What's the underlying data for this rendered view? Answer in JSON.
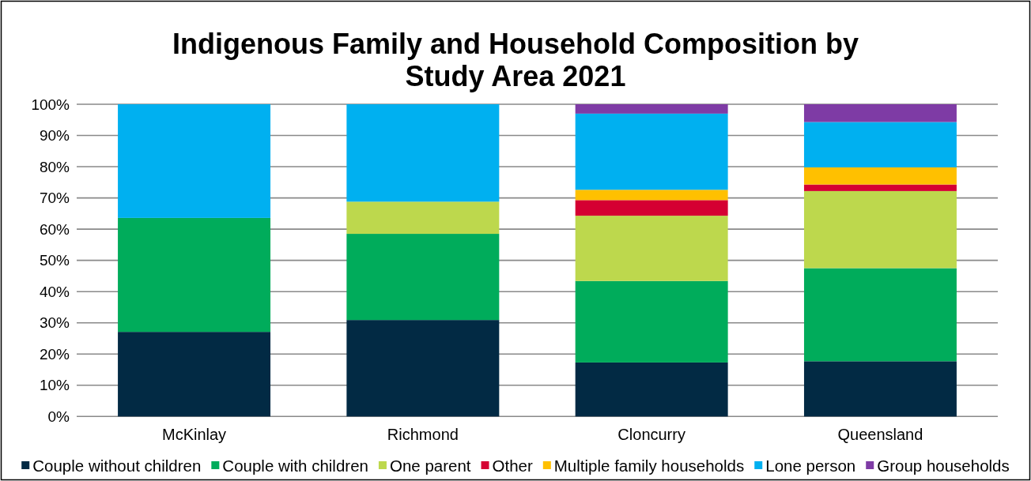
{
  "chart_data": {
    "type": "bar",
    "title": "Indigenous Family and Household Composition by Study Area 2021",
    "categories": [
      "McKinlay",
      "Richmond",
      "Cloncurry",
      "Queensland"
    ],
    "stacked": true,
    "series": [
      {
        "name": "Couple without children",
        "color": "#022a44",
        "values": [
          27.1,
          30.9,
          17.3,
          17.7
        ]
      },
      {
        "name": "Couple with children",
        "color": "#00ac5b",
        "values": [
          36.5,
          27.6,
          26.1,
          29.8
        ]
      },
      {
        "name": "One parent",
        "color": "#bdd84d",
        "values": [
          0,
          10.3,
          20.9,
          24.7
        ]
      },
      {
        "name": "Other",
        "color": "#d50032",
        "values": [
          0,
          0,
          5.0,
          2.1
        ]
      },
      {
        "name": "Multiple family households",
        "color": "#ffc000",
        "values": [
          0,
          0,
          3.3,
          5.5
        ]
      },
      {
        "name": "Lone person",
        "color": "#00b0f0",
        "values": [
          36.4,
          31.2,
          24.4,
          14.5
        ]
      },
      {
        "name": "Group households",
        "color": "#7e3ba5",
        "values": [
          0,
          0,
          3.0,
          5.7
        ]
      }
    ],
    "ylim": [
      0,
      100
    ],
    "yticks": [
      {
        "value": 0,
        "label": "0%"
      },
      {
        "value": 10,
        "label": "10%"
      },
      {
        "value": 20,
        "label": "20%"
      },
      {
        "value": 30,
        "label": "30%"
      },
      {
        "value": 40,
        "label": "40%"
      },
      {
        "value": 50,
        "label": "50%"
      },
      {
        "value": 60,
        "label": "60%"
      },
      {
        "value": 70,
        "label": "70%"
      },
      {
        "value": 80,
        "label": "80%"
      },
      {
        "value": 90,
        "label": "90%"
      },
      {
        "value": 100,
        "label": "100%"
      }
    ],
    "grid": "y",
    "legend": "bottom"
  }
}
